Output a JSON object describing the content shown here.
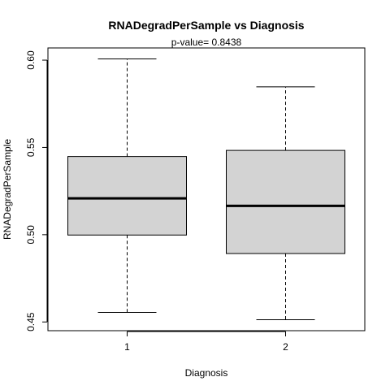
{
  "chart_data": {
    "type": "boxplot",
    "title": "RNADegradPerSample  vs  Diagnosis",
    "subtitle": "p-value= 0.8438",
    "xlabel": "Diagnosis",
    "ylabel": "RNADegradPerSample",
    "categories": [
      "1",
      "2"
    ],
    "boxes": [
      {
        "category": "1",
        "min": 0.4555,
        "q1": 0.4998,
        "median": 0.5208,
        "q3": 0.5448,
        "max": 0.6007
      },
      {
        "category": "2",
        "min": 0.4513,
        "q1": 0.4892,
        "median": 0.5165,
        "q3": 0.5483,
        "max": 0.5847
      }
    ],
    "y_ticks": [
      0.45,
      0.5,
      0.55,
      0.6
    ],
    "y_tick_labels": [
      "0.45",
      "0.50",
      "0.55",
      "0.60"
    ],
    "ylim": [
      0.445,
      0.607
    ],
    "grid": false,
    "legend": "none",
    "box_fill": "#d3d3d3",
    "line_color": "#000000"
  }
}
